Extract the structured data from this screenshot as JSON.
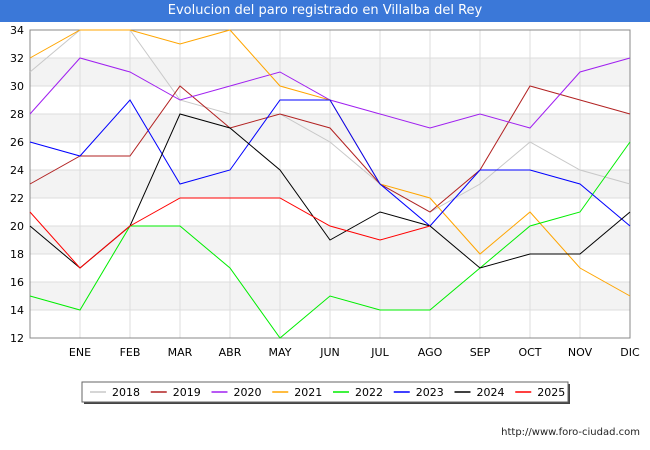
{
  "chart_data": {
    "type": "line",
    "title": "Evolucion del paro registrado en Villalba del Rey",
    "xlabel": "",
    "ylabel": "",
    "ylim": [
      12,
      34
    ],
    "yticks": [
      12,
      14,
      16,
      18,
      20,
      22,
      24,
      26,
      28,
      30,
      32,
      34
    ],
    "categories": [
      "",
      "ENE",
      "FEB",
      "MAR",
      "ABR",
      "MAY",
      "JUN",
      "JUL",
      "AGO",
      "SEP",
      "OCT",
      "NOV",
      "DIC"
    ],
    "grid": true,
    "legend_position": "bottom",
    "series": [
      {
        "name": "2018",
        "color": "#c8c8c8",
        "values": [
          31,
          34,
          34,
          29,
          28,
          28,
          26,
          23,
          21,
          23,
          26,
          24,
          23
        ]
      },
      {
        "name": "2019",
        "color": "#b22222",
        "values": [
          23,
          25,
          25,
          30,
          27,
          28,
          27,
          23,
          21,
          24,
          30,
          29,
          28
        ]
      },
      {
        "name": "2020",
        "color": "#a020f0",
        "values": [
          28,
          32,
          31,
          29,
          30,
          31,
          29,
          28,
          27,
          28,
          27,
          31,
          32
        ]
      },
      {
        "name": "2021",
        "color": "#ffa500",
        "values": [
          32,
          34,
          34,
          33,
          34,
          30,
          29,
          23,
          22,
          18,
          21,
          17,
          15
        ]
      },
      {
        "name": "2022",
        "color": "#00ee00",
        "values": [
          15,
          14,
          20,
          20,
          17,
          12,
          15,
          14,
          14,
          17,
          20,
          21,
          26
        ]
      },
      {
        "name": "2023",
        "color": "#0000ff",
        "values": [
          26,
          25,
          29,
          23,
          24,
          29,
          29,
          23,
          20,
          24,
          24,
          23,
          20
        ]
      },
      {
        "name": "2024",
        "color": "#000000",
        "values": [
          20,
          17,
          20,
          28,
          27,
          24,
          19,
          21,
          20,
          17,
          18,
          18,
          21
        ]
      },
      {
        "name": "2025",
        "color": "#ff0000",
        "values": [
          21,
          17,
          20,
          22,
          22,
          22,
          20,
          19,
          20,
          null,
          null,
          null,
          null
        ]
      }
    ]
  },
  "footer": {
    "url": "http://www.foro-ciudad.com"
  }
}
